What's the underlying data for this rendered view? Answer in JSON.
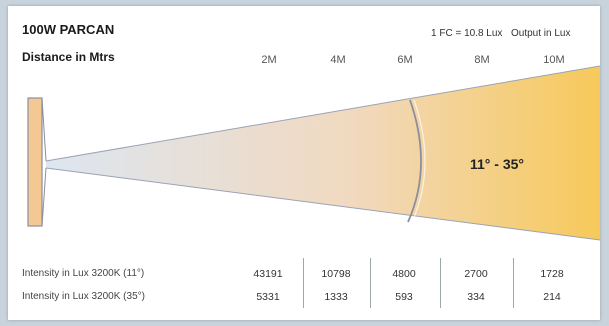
{
  "header": {
    "title": "100W PARCAN",
    "subtitle": "Distance in Mtrs",
    "conversion": "1 FC = 10.8 Lux",
    "output_unit": "Output in Lux"
  },
  "distances": [
    "2M",
    "4M",
    "6M",
    "8M",
    "10M"
  ],
  "beam": {
    "angle_label": "11° - 35°",
    "colors": {
      "start": "#dde6f0",
      "end": "#f7c95a",
      "fixture": "#f3c893",
      "outline": "#8a8fa0"
    }
  },
  "table": {
    "rows": [
      {
        "label": "Intensity in Lux 3200K (11°)",
        "values": [
          "43191",
          "10798",
          "4800",
          "2700",
          "1728"
        ]
      },
      {
        "label": "Intensity in Lux 3200K (35°)",
        "values": [
          "5331",
          "1333",
          "593",
          "334",
          "214"
        ]
      }
    ]
  }
}
